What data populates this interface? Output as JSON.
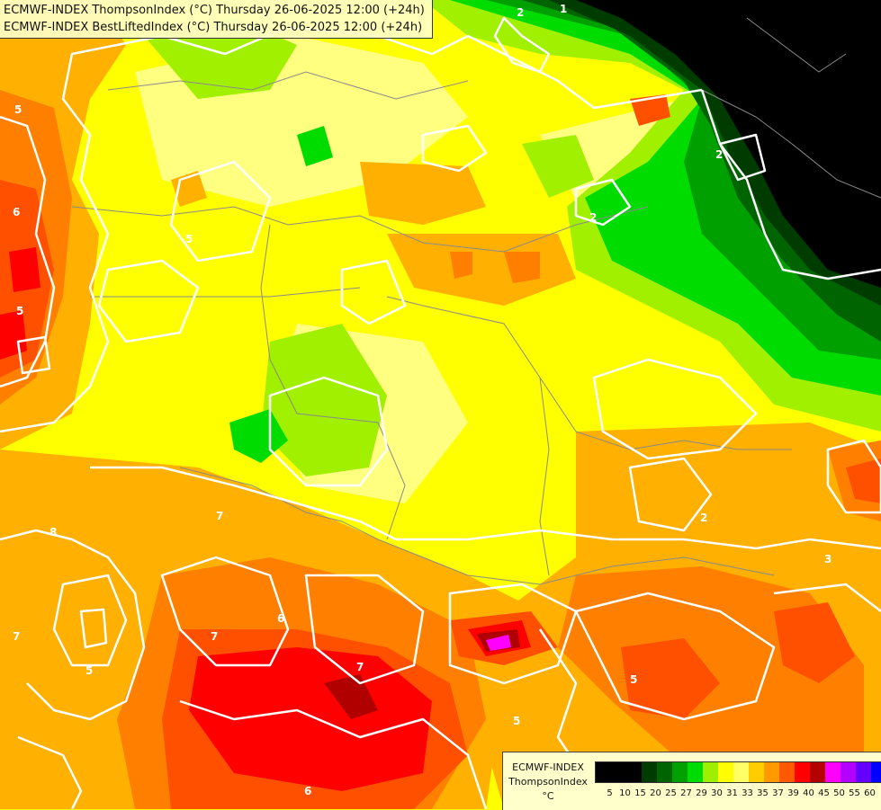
{
  "header": {
    "line1": "ECMWF-INDEX ThompsonIndex (°C) Thursday 26-06-2025 12:00 (+24h)",
    "line2": "ECMWF-INDEX BestLiftedIndex (°C) Thursday 26-06-2025 12:00 (+24h)"
  },
  "legend": {
    "line1": "ECMWF-INDEX",
    "line2": "ThompsonIndex",
    "unit": "°C",
    "ticks": [
      "5",
      "10",
      "15",
      "20",
      "25",
      "27",
      "29",
      "30",
      "31",
      "33",
      "35",
      "37",
      "39",
      "40",
      "45",
      "50",
      "55",
      "60"
    ],
    "colors": [
      "#000000",
      "#000000",
      "#000000",
      "#003b00",
      "#006400",
      "#00a000",
      "#00dc00",
      "#9ff000",
      "#ffff00",
      "#ffff66",
      "#ffcc00",
      "#ff9900",
      "#ff5a00",
      "#ff0000",
      "#b40000",
      "#ff00ff",
      "#b400ff",
      "#6400ff",
      "#0000ff"
    ]
  },
  "contour_labels": [
    "2",
    "1",
    "5",
    "6",
    "5",
    "2",
    "2",
    "5",
    "8",
    "5",
    "7",
    "6",
    "7",
    "7",
    "5",
    "5",
    "2",
    "3",
    "6",
    "7"
  ],
  "colors": {
    "yellow": "#ffff00",
    "light_yellow": "#ffff80",
    "lime": "#a0f000",
    "green": "#00dc00",
    "green_mid": "#00a000",
    "green_dark": "#006400",
    "green_deep": "#003b00",
    "black": "#000000",
    "orange": "#ffb000",
    "dark_orange": "#ff8000",
    "red_orange": "#ff5000",
    "red": "#ff0000",
    "dark_red": "#b00000",
    "magenta": "#ff00ff",
    "contour": "#ffffff"
  }
}
